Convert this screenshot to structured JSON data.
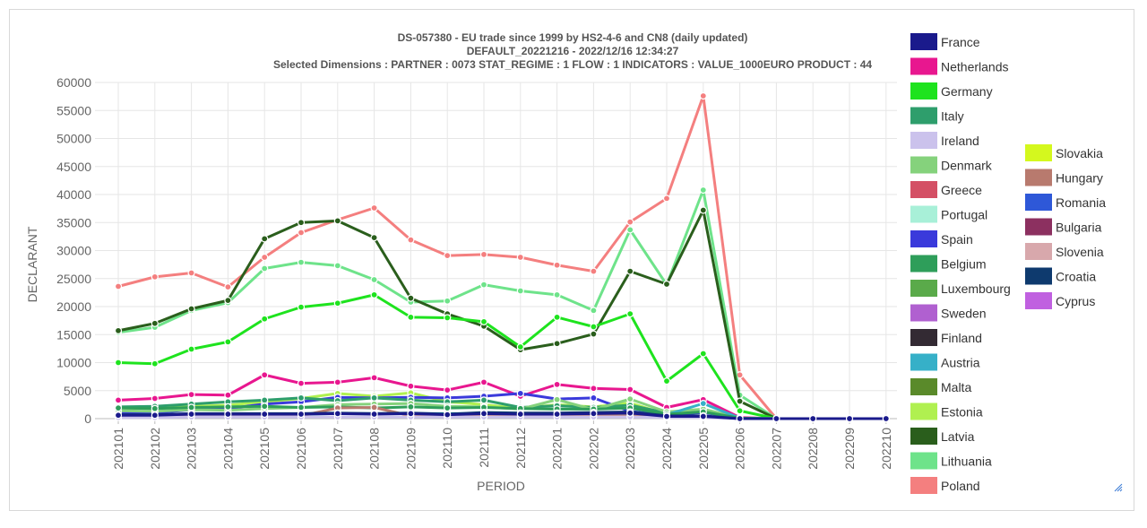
{
  "chart_data": {
    "type": "line",
    "title_lines": [
      "DS-057380 - EU trade since 1999 by HS2-4-6 and CN8 (daily updated)",
      "DEFAULT_20221216 - 2022/12/16 12:34:27",
      "Selected Dimensions : PARTNER : 0073   STAT_REGIME : 1   FLOW : 1   INDICATORS : VALUE_1000EURO   PRODUCT : 44"
    ],
    "xlabel": "PERIOD",
    "ylabel": "DECLARANT",
    "ylim": [
      0,
      60000
    ],
    "yticks": [
      "0",
      "5000",
      "10000",
      "15000",
      "20000",
      "25000",
      "30000",
      "35000",
      "40000",
      "45000",
      "50000",
      "55000",
      "60000"
    ],
    "grid": true,
    "legend_position": "right",
    "x": [
      "202101",
      "202102",
      "202103",
      "202104",
      "202105",
      "202106",
      "202107",
      "202108",
      "202109",
      "202110",
      "202111",
      "202112",
      "202201",
      "202202",
      "202203",
      "202204",
      "202205",
      "202206",
      "202207",
      "202208",
      "202209",
      "202210"
    ],
    "series": [
      {
        "name": "Poland",
        "color": "#f47f7f",
        "values": [
          23600,
          25300,
          26000,
          23500,
          28800,
          33200,
          35500,
          37600,
          31900,
          29100,
          29300,
          28800,
          27400,
          26300,
          35100,
          39300,
          57600,
          7800,
          0,
          0,
          0,
          0
        ]
      },
      {
        "name": "Lithuania",
        "color": "#6ee38a",
        "values": [
          15400,
          16300,
          19300,
          20700,
          26800,
          27900,
          27300,
          24800,
          20800,
          21000,
          23900,
          22800,
          22100,
          19300,
          33700,
          23900,
          40800,
          4200,
          0,
          0,
          0,
          0
        ]
      },
      {
        "name": "Latvia",
        "color": "#2a5e1c",
        "values": [
          15700,
          17000,
          19600,
          21100,
          32100,
          35000,
          35300,
          32300,
          21500,
          18700,
          16500,
          12300,
          13400,
          15100,
          26300,
          24000,
          37200,
          3100,
          0,
          0,
          0,
          0
        ]
      },
      {
        "name": "Germany",
        "color": "#1ee31e",
        "values": [
          10000,
          9800,
          12400,
          13700,
          17800,
          19900,
          20600,
          22100,
          18100,
          18000,
          17300,
          12800,
          18100,
          16400,
          18700,
          6700,
          11600,
          1400,
          0,
          0,
          0,
          0
        ]
      },
      {
        "name": "Netherlands",
        "color": "#e8178f",
        "values": [
          3300,
          3600,
          4300,
          4200,
          7800,
          6300,
          6500,
          7300,
          5800,
          5100,
          6500,
          4000,
          6100,
          5400,
          5200,
          2000,
          3400,
          200,
          0,
          0,
          0,
          0
        ]
      },
      {
        "name": "Estonia",
        "color": "#b0f050",
        "values": [
          1900,
          1800,
          2200,
          2400,
          3000,
          3600,
          4500,
          4000,
          4600,
          3000,
          2500,
          1800,
          2500,
          2100,
          2800,
          800,
          1500,
          100,
          0,
          0,
          0,
          0
        ]
      },
      {
        "name": "Spain",
        "color": "#3a3adb",
        "values": [
          1000,
          1000,
          1600,
          1800,
          2600,
          3000,
          3800,
          3700,
          3800,
          3700,
          4000,
          4500,
          3500,
          3700,
          1300,
          600,
          1100,
          100,
          0,
          0,
          0,
          0
        ]
      },
      {
        "name": "Italy",
        "color": "#2e9e6c",
        "values": [
          2100,
          2200,
          2600,
          3000,
          3300,
          3700,
          3200,
          3700,
          3300,
          3000,
          3300,
          2000,
          2300,
          2000,
          2400,
          1000,
          1600,
          100,
          0,
          0,
          0,
          0
        ]
      },
      {
        "name": "Denmark",
        "color": "#85d27c",
        "values": [
          1400,
          1300,
          1600,
          1500,
          1800,
          2000,
          2500,
          2600,
          2700,
          2200,
          2100,
          1700,
          3400,
          1600,
          3500,
          1200,
          1700,
          100,
          0,
          0,
          0,
          0
        ]
      },
      {
        "name": "Austria",
        "color": "#36b0c8",
        "values": [
          600,
          600,
          700,
          700,
          800,
          800,
          900,
          900,
          900,
          900,
          900,
          900,
          900,
          900,
          900,
          700,
          2700,
          100,
          0,
          0,
          0,
          0
        ]
      },
      {
        "name": "Belgium",
        "color": "#2e9e5a",
        "values": [
          1900,
          1800,
          2000,
          2100,
          2200,
          2000,
          2100,
          1900,
          2100,
          1900,
          2000,
          1800,
          1700,
          1700,
          1900,
          800,
          1200,
          100,
          0,
          0,
          0,
          0
        ]
      },
      {
        "name": "Hungary",
        "color": "#b87a6e",
        "values": [
          300,
          300,
          400,
          400,
          500,
          500,
          1900,
          2000,
          500,
          500,
          600,
          500,
          500,
          500,
          500,
          300,
          400,
          0,
          0,
          0,
          0,
          0
        ]
      },
      {
        "name": "Ireland",
        "color": "#cbc2ec",
        "values": [
          200,
          200,
          300,
          300,
          300,
          300,
          300,
          300,
          300,
          300,
          300,
          300,
          300,
          300,
          300,
          200,
          200,
          0,
          0,
          0,
          0,
          0
        ]
      },
      {
        "name": "Croatia",
        "color": "#0e3a6e",
        "values": [
          700,
          700,
          900,
          900,
          900,
          900,
          1000,
          900,
          1000,
          800,
          1100,
          1000,
          1000,
          1100,
          1200,
          500,
          500,
          0,
          0,
          0,
          0,
          0
        ]
      },
      {
        "name": "France",
        "color": "#1a1a8c",
        "values": [
          600,
          600,
          800,
          800,
          800,
          800,
          900,
          800,
          900,
          700,
          900,
          800,
          800,
          900,
          1000,
          400,
          400,
          0,
          0,
          0,
          0,
          0
        ]
      }
    ],
    "legend": [
      {
        "name": "France",
        "color": "#1a1a8c"
      },
      {
        "name": "Netherlands",
        "color": "#e8178f"
      },
      {
        "name": "Germany",
        "color": "#1ee31e"
      },
      {
        "name": "Italy",
        "color": "#2e9e6c"
      },
      {
        "name": "Ireland",
        "color": "#cbc2ec"
      },
      {
        "name": "Denmark",
        "color": "#85d27c"
      },
      {
        "name": "Greece",
        "color": "#d45065"
      },
      {
        "name": "Portugal",
        "color": "#a8f0d8"
      },
      {
        "name": "Spain",
        "color": "#3a3adb"
      },
      {
        "name": "Belgium",
        "color": "#2e9e5a"
      },
      {
        "name": "Luxembourg",
        "color": "#5aaa4a"
      },
      {
        "name": "Sweden",
        "color": "#b060d0"
      },
      {
        "name": "Finland",
        "color": "#332a33"
      },
      {
        "name": "Austria",
        "color": "#36b0c8"
      },
      {
        "name": "Malta",
        "color": "#5a8a2a"
      },
      {
        "name": "Estonia",
        "color": "#b0f050"
      },
      {
        "name": "Latvia",
        "color": "#2a5e1c"
      },
      {
        "name": "Lithuania",
        "color": "#6ee38a"
      },
      {
        "name": "Poland",
        "color": "#f47f7f"
      },
      {
        "name": "Slovakia",
        "color": "#d4f81e"
      },
      {
        "name": "Hungary",
        "color": "#b87a6e"
      },
      {
        "name": "Romania",
        "color": "#2e58d8"
      },
      {
        "name": "Bulgaria",
        "color": "#8c3060"
      },
      {
        "name": "Slovenia",
        "color": "#d8a8ac"
      },
      {
        "name": "Croatia",
        "color": "#0e3a6e"
      },
      {
        "name": "Cyprus",
        "color": "#c060e0"
      }
    ]
  }
}
